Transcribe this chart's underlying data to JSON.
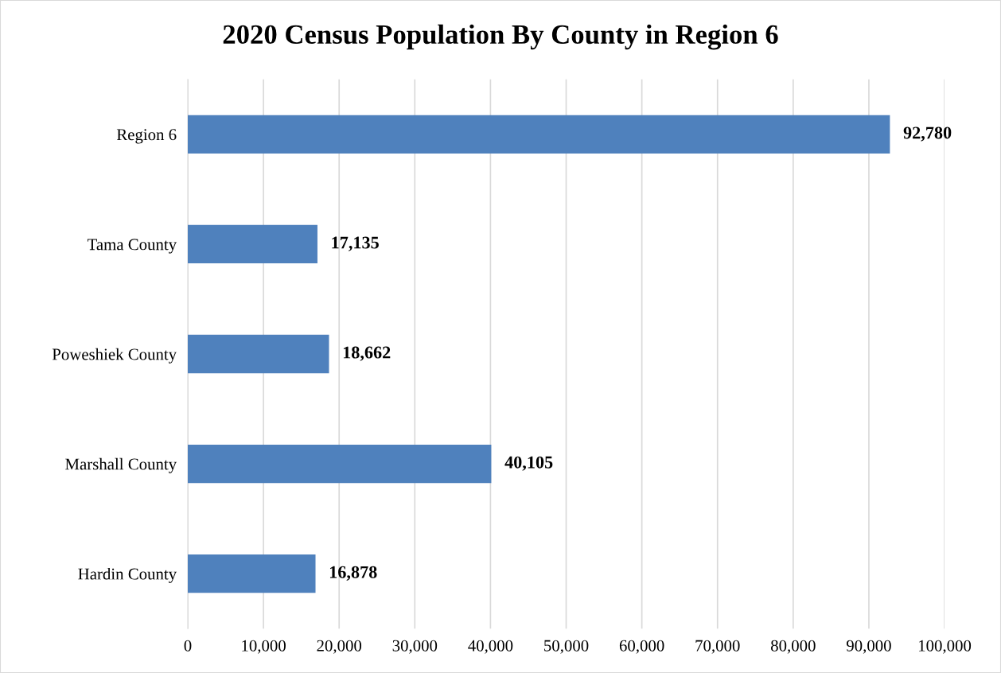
{
  "chart_data": {
    "type": "bar",
    "orientation": "horizontal",
    "title": "2020 Census Population By County in Region 6",
    "categories": [
      "Region 6",
      "Tama County",
      "Poweshiek County",
      "Marshall County",
      "Hardin County"
    ],
    "values": [
      92780,
      17135,
      18662,
      40105,
      16878
    ],
    "color": "#4f81bd",
    "xlim": [
      0,
      100000
    ],
    "xticks": [
      0,
      {
        "value": 10000,
        "label": "10,000"
      },
      {
        "value": 20000,
        "label": "20,000"
      },
      {
        "value": 30000,
        "label": "30,000"
      },
      {
        "value": 40000,
        "label": "40,000"
      },
      {
        "value": 50000,
        "label": "50,000"
      },
      {
        "value": 60000,
        "label": "60,000"
      },
      {
        "value": 70000,
        "label": "70,000"
      },
      {
        "value": 80000,
        "label": "80,000"
      },
      {
        "value": 90000,
        "label": "90,000"
      },
      {
        "value": 100000,
        "label": "100,000"
      }
    ],
    "grid": "x",
    "value_labels": [
      "92,780",
      "17,135",
      "18,662",
      "40,105",
      "16,878"
    ]
  }
}
